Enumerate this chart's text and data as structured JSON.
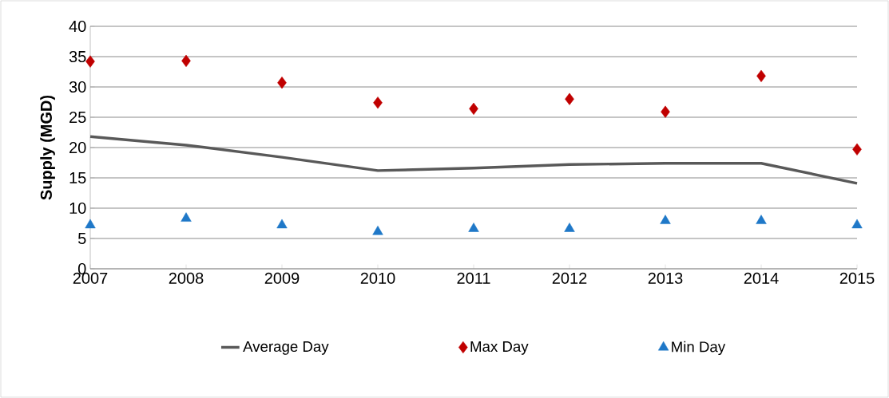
{
  "chart_data": {
    "type": "line",
    "ylabel": "Supply (MGD)",
    "x": [
      2007,
      2008,
      2009,
      2010,
      2011,
      2012,
      2013,
      2014,
      2015
    ],
    "xlim": [
      2007,
      2015
    ],
    "xticks": [
      2007,
      2008,
      2009,
      2010,
      2011,
      2012,
      2013,
      2014,
      2015
    ],
    "ylim": [
      0,
      40
    ],
    "yticks": [
      0,
      5,
      10,
      15,
      20,
      25,
      30,
      35,
      40
    ],
    "grid": "y",
    "legend": "bottom",
    "series": [
      {
        "name": "Average Day",
        "color": "#595959",
        "marker": "none",
        "values": [
          21.8,
          20.4,
          18.4,
          16.2,
          16.6,
          17.2,
          17.4,
          17.4,
          14.1
        ]
      },
      {
        "name": "Max Day",
        "type": "scatter",
        "color": "#c00000",
        "marker": "diamond",
        "values": [
          34.2,
          34.3,
          30.7,
          27.4,
          26.4,
          28.0,
          25.9,
          31.8,
          19.7
        ]
      },
      {
        "name": "Min Day",
        "type": "scatter",
        "color": "#1f78c8",
        "marker": "triangle",
        "values": [
          7.2,
          8.3,
          7.2,
          6.1,
          6.6,
          6.6,
          7.9,
          7.9,
          7.2
        ]
      }
    ]
  }
}
